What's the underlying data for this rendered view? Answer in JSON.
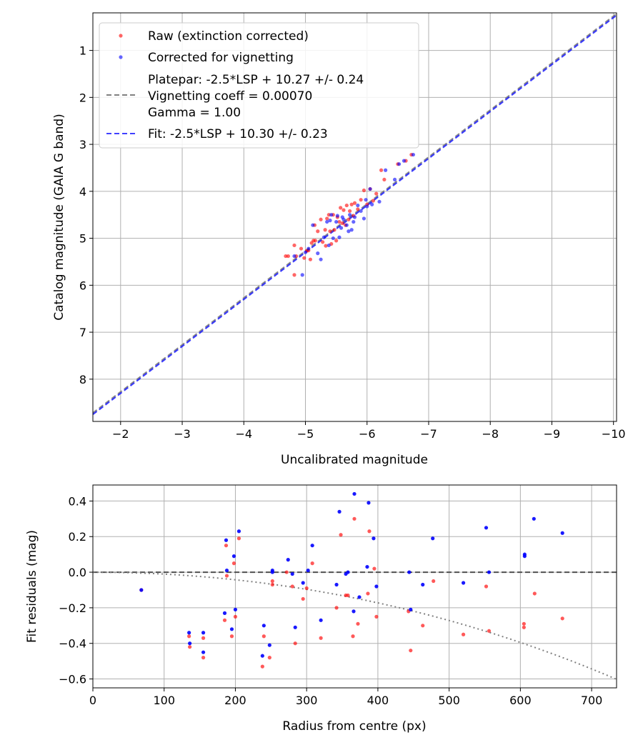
{
  "chart_data": [
    {
      "type": "scatter",
      "xlabel": "Uncalibrated magnitude",
      "ylabel": "Catalog magnitude (GAIA G band)",
      "xlim": [
        -1.55,
        -10.05
      ],
      "ylim": [
        8.9,
        0.2
      ],
      "xticks": [
        -2,
        -3,
        -4,
        -5,
        -6,
        -7,
        -8,
        -9,
        -10
      ],
      "xticklabels": [
        "−2",
        "−3",
        "−4",
        "−5",
        "−6",
        "−7",
        "−8",
        "−9",
        "−10"
      ],
      "yticks": [
        1,
        2,
        3,
        4,
        5,
        6,
        7,
        8
      ],
      "yticklabels": [
        "1",
        "2",
        "3",
        "4",
        "5",
        "6",
        "7",
        "8"
      ],
      "grid": true,
      "legend": {
        "placement": "top-left",
        "entries": [
          {
            "label": "Raw (extinction corrected)",
            "marker": "dot",
            "color": "#ff0000"
          },
          {
            "label": "Corrected for vignetting",
            "marker": "dot",
            "color": "#0000ff"
          },
          {
            "label": "Platepar: -2.5*LSP + 10.27 +/- 0.24",
            "marker": "dash",
            "color": "#808080"
          },
          {
            "label": "Vignetting coeff = 0.00070",
            "marker": "none",
            "color": "#808080"
          },
          {
            "label": "Gamma = 1.00",
            "marker": "none",
            "color": "#808080"
          },
          {
            "label": "Fit: -2.5*LSP + 10.30 +/- 0.23",
            "marker": "dash",
            "color": "#0000ff"
          }
        ]
      },
      "lines": [
        {
          "name": "Platepar",
          "slope": 1.0,
          "intercept": 10.27,
          "color": "#808080"
        },
        {
          "name": "Fit",
          "slope": 1.0,
          "intercept": 10.3,
          "color": "#0000ff"
        }
      ],
      "series": [
        {
          "name": "Raw (extinction corrected)",
          "color": "#ff0000",
          "points": [
            [
              -4.68,
              5.38
            ],
            [
              -4.72,
              5.38
            ],
            [
              -4.82,
              5.15
            ],
            [
              -4.82,
              5.78
            ],
            [
              -4.85,
              5.38
            ],
            [
              -4.93,
              5.22
            ],
            [
              -4.98,
              5.42
            ],
            [
              -5.02,
              5.27
            ],
            [
              -5.05,
              5.26
            ],
            [
              -5.08,
              5.45
            ],
            [
              -5.1,
              5.1
            ],
            [
              -5.13,
              5.05
            ],
            [
              -5.15,
              4.72
            ],
            [
              -5.16,
              5.05
            ],
            [
              -5.2,
              4.85
            ],
            [
              -5.25,
              4.6
            ],
            [
              -5.28,
              5.08
            ],
            [
              -5.32,
              4.82
            ],
            [
              -5.33,
              5.16
            ],
            [
              -5.35,
              4.58
            ],
            [
              -5.38,
              4.5
            ],
            [
              -5.4,
              4.85
            ],
            [
              -5.42,
              5.12
            ],
            [
              -5.45,
              4.5
            ],
            [
              -5.47,
              4.82
            ],
            [
              -5.5,
              5.05
            ],
            [
              -5.52,
              4.55
            ],
            [
              -5.55,
              4.65
            ],
            [
              -5.57,
              4.35
            ],
            [
              -5.6,
              4.68
            ],
            [
              -5.62,
              4.4
            ],
            [
              -5.65,
              4.72
            ],
            [
              -5.67,
              4.3
            ],
            [
              -5.7,
              4.6
            ],
            [
              -5.72,
              4.42
            ],
            [
              -5.75,
              4.28
            ],
            [
              -5.78,
              4.52
            ],
            [
              -5.8,
              4.25
            ],
            [
              -5.85,
              4.38
            ],
            [
              -5.9,
              4.18
            ],
            [
              -5.95,
              3.98
            ],
            [
              -6.0,
              4.28
            ],
            [
              -6.05,
              3.95
            ],
            [
              -6.1,
              4.2
            ],
            [
              -6.15,
              4.05
            ],
            [
              -6.23,
              3.55
            ],
            [
              -6.28,
              3.75
            ],
            [
              -6.5,
              3.42
            ],
            [
              -6.63,
              3.35
            ],
            [
              -6.72,
              3.22
            ]
          ]
        },
        {
          "name": "Corrected for vignetting",
          "color": "#0000ff",
          "points": [
            [
              -4.82,
              5.38
            ],
            [
              -4.95,
              5.78
            ],
            [
              -5.0,
              5.3
            ],
            [
              -5.05,
              5.22
            ],
            [
              -5.12,
              4.72
            ],
            [
              -5.2,
              5.32
            ],
            [
              -5.25,
              5.45
            ],
            [
              -5.3,
              4.98
            ],
            [
              -5.35,
              4.65
            ],
            [
              -5.38,
              5.15
            ],
            [
              -5.4,
              4.62
            ],
            [
              -5.42,
              4.5
            ],
            [
              -5.45,
              5.0
            ],
            [
              -5.5,
              4.65
            ],
            [
              -5.52,
              4.52
            ],
            [
              -5.55,
              4.98
            ],
            [
              -5.58,
              4.78
            ],
            [
              -5.6,
              4.55
            ],
            [
              -5.62,
              4.6
            ],
            [
              -5.67,
              4.72
            ],
            [
              -5.7,
              4.85
            ],
            [
              -5.72,
              4.5
            ],
            [
              -5.75,
              4.82
            ],
            [
              -5.78,
              4.65
            ],
            [
              -5.8,
              4.55
            ],
            [
              -5.85,
              4.3
            ],
            [
              -5.9,
              4.42
            ],
            [
              -5.95,
              4.58
            ],
            [
              -5.98,
              4.18
            ],
            [
              -6.0,
              4.32
            ],
            [
              -6.05,
              3.95
            ],
            [
              -6.08,
              4.28
            ],
            [
              -6.2,
              4.22
            ],
            [
              -6.3,
              3.55
            ],
            [
              -6.45,
              3.75
            ],
            [
              -6.52,
              3.42
            ],
            [
              -6.6,
              3.35
            ],
            [
              -6.75,
              3.22
            ]
          ]
        }
      ]
    },
    {
      "type": "scatter",
      "xlabel": "Radius from centre (px)",
      "ylabel": "Fit residuals (mag)",
      "xlim": [
        0,
        735
      ],
      "ylim": [
        -0.65,
        0.49
      ],
      "xticks": [
        0,
        100,
        200,
        300,
        400,
        500,
        600,
        700
      ],
      "xticklabels": [
        "0",
        "100",
        "200",
        "300",
        "400",
        "500",
        "600",
        "700"
      ],
      "yticks": [
        0.4,
        0.2,
        0.0,
        -0.2,
        -0.4,
        -0.6
      ],
      "yticklabels": [
        "0.4",
        "0.2",
        "0.0",
        "−0.2",
        "−0.4",
        "−0.6"
      ],
      "grid": true,
      "lines": [
        {
          "name": "zero",
          "style": "dashed",
          "color": "#505050",
          "y": 0.0
        },
        {
          "name": "vignetting",
          "style": "dotted",
          "color": "#808080",
          "coeff": 0.0007,
          "formula": "-2.5*log10(cos(coeff*r)^4)"
        }
      ],
      "series": [
        {
          "name": "Raw",
          "color": "#ff0000",
          "points": [
            [
              68,
              -0.1
            ],
            [
              135,
              -0.36
            ],
            [
              136,
              -0.42
            ],
            [
              155,
              -0.37
            ],
            [
              155,
              -0.48
            ],
            [
              185,
              -0.27
            ],
            [
              187,
              0.15
            ],
            [
              188,
              -0.02
            ],
            [
              195,
              -0.36
            ],
            [
              198,
              0.05
            ],
            [
              200,
              -0.25
            ],
            [
              205,
              0.19
            ],
            [
              238,
              -0.53
            ],
            [
              240,
              -0.36
            ],
            [
              248,
              -0.48
            ],
            [
              252,
              -0.07
            ],
            [
              252,
              -0.05
            ],
            [
              272,
              0.0
            ],
            [
              280,
              -0.08
            ],
            [
              284,
              -0.4
            ],
            [
              295,
              -0.15
            ],
            [
              300,
              -0.09
            ],
            [
              308,
              0.05
            ],
            [
              320,
              -0.37
            ],
            [
              342,
              -0.2
            ],
            [
              348,
              0.21
            ],
            [
              355,
              -0.13
            ],
            [
              358,
              -0.13
            ],
            [
              365,
              -0.36
            ],
            [
              367,
              0.3
            ],
            [
              372,
              -0.29
            ],
            [
              386,
              -0.12
            ],
            [
              388,
              0.23
            ],
            [
              395,
              0.02
            ],
            [
              398,
              -0.25
            ],
            [
              443,
              -0.22
            ],
            [
              446,
              -0.44
            ],
            [
              463,
              -0.3
            ],
            [
              478,
              -0.05
            ],
            [
              520,
              -0.35
            ],
            [
              552,
              -0.08
            ],
            [
              556,
              -0.33
            ],
            [
              605,
              -0.29
            ],
            [
              605,
              -0.31
            ],
            [
              620,
              -0.12
            ],
            [
              659,
              -0.26
            ]
          ]
        },
        {
          "name": "Corrected",
          "color": "#0000ff",
          "points": [
            [
              68,
              -0.1
            ],
            [
              135,
              -0.34
            ],
            [
              136,
              -0.4
            ],
            [
              155,
              -0.34
            ],
            [
              155,
              -0.45
            ],
            [
              185,
              -0.23
            ],
            [
              187,
              0.18
            ],
            [
              188,
              0.01
            ],
            [
              195,
              -0.32
            ],
            [
              198,
              0.09
            ],
            [
              200,
              -0.21
            ],
            [
              205,
              0.23
            ],
            [
              238,
              -0.47
            ],
            [
              240,
              -0.3
            ],
            [
              248,
              -0.41
            ],
            [
              252,
              0.0
            ],
            [
              252,
              0.01
            ],
            [
              274,
              0.07
            ],
            [
              280,
              -0.01
            ],
            [
              284,
              -0.31
            ],
            [
              295,
              -0.06
            ],
            [
              302,
              0.01
            ],
            [
              308,
              0.15
            ],
            [
              320,
              -0.27
            ],
            [
              342,
              -0.07
            ],
            [
              346,
              0.34
            ],
            [
              355,
              -0.01
            ],
            [
              358,
              -0.0
            ],
            [
              366,
              -0.22
            ],
            [
              367,
              0.44
            ],
            [
              374,
              -0.14
            ],
            [
              385,
              0.03
            ],
            [
              387,
              0.39
            ],
            [
              394,
              0.19
            ],
            [
              398,
              -0.08
            ],
            [
              444,
              0.0
            ],
            [
              446,
              -0.21
            ],
            [
              463,
              -0.07
            ],
            [
              477,
              0.19
            ],
            [
              520,
              -0.06
            ],
            [
              552,
              0.25
            ],
            [
              556,
              0.0
            ],
            [
              606,
              0.1
            ],
            [
              606,
              0.09
            ],
            [
              619,
              0.3
            ],
            [
              659,
              0.22
            ]
          ]
        }
      ]
    }
  ]
}
